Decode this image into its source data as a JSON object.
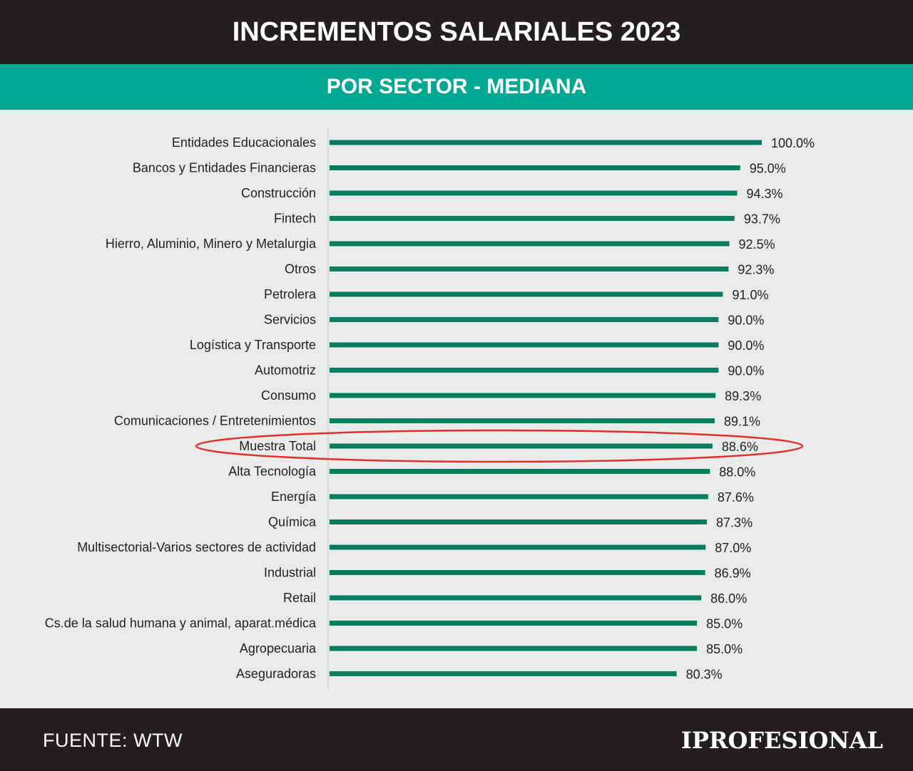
{
  "header": {
    "title": "INCREMENTOS SALARIALES 2023",
    "subtitle": "POR SECTOR - MEDIANA"
  },
  "footer": {
    "source": "FUENTE: WTW",
    "logo": "IPROFESIONAL"
  },
  "colors": {
    "bar": "#0a7c5e",
    "highlight": "#e0322b",
    "header_bg": "#231f20",
    "accent": "#00a891"
  },
  "chart_data": {
    "type": "bar",
    "orientation": "horizontal",
    "title": "INCREMENTOS SALARIALES 2023",
    "subtitle": "POR SECTOR - MEDIANA",
    "xlim": [
      0,
      100
    ],
    "highlighted": "Muestra Total",
    "categories": [
      "Entidades Educacionales",
      "Bancos y Entidades Financieras",
      "Construcción",
      "Fintech",
      "Hierro, Aluminio, Minero y Metalurgia",
      "Otros",
      "Petrolera",
      "Servicios",
      "Logística y Transporte",
      "Automotriz",
      "Consumo",
      "Comunicaciones / Entretenimientos",
      "Muestra Total",
      "Alta Tecnología",
      "Energía",
      "Química",
      "Multisectorial-Varios sectores de actividad",
      "Industrial",
      "Retail",
      "Cs.de la salud humana y animal, aparat.médica",
      "Agropecuaria",
      "Aseguradoras"
    ],
    "values": [
      100.0,
      95.0,
      94.3,
      93.7,
      92.5,
      92.3,
      91.0,
      90.0,
      90.0,
      90.0,
      89.3,
      89.1,
      88.6,
      88.0,
      87.6,
      87.3,
      87.0,
      86.9,
      86.0,
      85.0,
      85.0,
      80.3
    ],
    "value_labels": [
      "100.0%",
      "95.0%",
      "94.3%",
      "93.7%",
      "92.5%",
      "92.3%",
      "91.0%",
      "90.0%",
      "90.0%",
      "90.0%",
      "89.3%",
      "89.1%",
      "88.6%",
      "88.0%",
      "87.6%",
      "87.3%",
      "87.0%",
      "86.9%",
      "86.0%",
      "85.0%",
      "85.0%",
      "80.3%"
    ]
  }
}
